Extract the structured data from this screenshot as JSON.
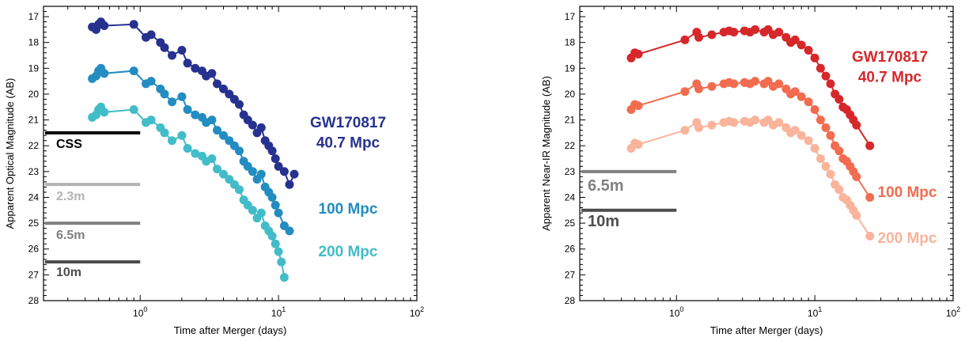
{
  "chart_data": [
    {
      "type": "line",
      "xlabel": "Time after Merger (days)",
      "ylabel": "Apparent Optical Magnitude (AB)",
      "xscale": "log",
      "xlim": [
        0.2,
        100
      ],
      "ylim": [
        28,
        16.6
      ],
      "y_inverted": true,
      "x_tick_labels": [
        {
          "base": "10",
          "exp": "0",
          "value": 1
        },
        {
          "base": "10",
          "exp": "1",
          "value": 10
        },
        {
          "base": "10",
          "exp": "2",
          "value": 100
        }
      ],
      "y_ticks": [
        17,
        18,
        19,
        20,
        21,
        22,
        23,
        24,
        25,
        26,
        27,
        28
      ],
      "y_tick_labels": [
        "17",
        "18",
        "19",
        "20",
        "21",
        "22",
        "23",
        "24",
        "25",
        "26",
        "27",
        "28"
      ],
      "series": [
        {
          "name": "GW170817 40.7 Mpc",
          "color": "#27318f",
          "x": [
            0.45,
            0.48,
            0.5,
            0.52,
            0.55,
            0.9,
            1.1,
            1.2,
            1.4,
            1.5,
            1.7,
            2.0,
            2.2,
            2.5,
            2.8,
            3.0,
            3.3,
            3.6,
            4.0,
            4.4,
            4.8,
            5.2,
            5.6,
            6.0,
            6.5,
            7.0,
            7.5,
            8.0,
            8.5,
            9.0,
            9.5,
            10.0,
            11.0,
            12.0,
            13.0
          ],
          "y": [
            17.4,
            17.5,
            17.3,
            17.2,
            17.35,
            17.3,
            17.8,
            17.7,
            18.0,
            18.2,
            18.5,
            18.3,
            18.8,
            19.0,
            19.1,
            19.3,
            19.2,
            19.6,
            19.8,
            20.0,
            20.2,
            20.4,
            20.8,
            21.0,
            21.2,
            21.5,
            21.3,
            21.8,
            22.0,
            22.2,
            22.5,
            22.8,
            23.0,
            23.5,
            23.1
          ]
        },
        {
          "name": "100 Mpc",
          "color": "#238cc0",
          "x": [
            0.45,
            0.48,
            0.5,
            0.52,
            0.55,
            0.9,
            1.1,
            1.2,
            1.4,
            1.5,
            1.7,
            2.0,
            2.2,
            2.5,
            2.8,
            3.0,
            3.3,
            3.6,
            4.0,
            4.4,
            4.8,
            5.2,
            5.6,
            6.0,
            6.5,
            7.0,
            7.5,
            8.0,
            8.5,
            9.0,
            9.5,
            10.0,
            11.0,
            12.0
          ],
          "y": [
            19.4,
            19.3,
            19.1,
            19.0,
            19.2,
            19.1,
            19.6,
            19.5,
            19.8,
            20.0,
            20.3,
            20.1,
            20.6,
            20.8,
            20.9,
            21.1,
            21.0,
            21.4,
            21.6,
            21.8,
            22.0,
            22.2,
            22.6,
            22.8,
            23.0,
            23.3,
            23.1,
            23.6,
            23.8,
            24.0,
            24.3,
            24.6,
            25.1,
            25.3
          ]
        },
        {
          "name": "200 Mpc",
          "color": "#42bcc8",
          "x": [
            0.45,
            0.48,
            0.5,
            0.52,
            0.55,
            0.9,
            1.1,
            1.2,
            1.4,
            1.5,
            1.7,
            2.0,
            2.2,
            2.5,
            2.8,
            3.0,
            3.3,
            3.6,
            4.0,
            4.4,
            4.8,
            5.2,
            5.6,
            6.0,
            6.5,
            7.0,
            7.5,
            8.0,
            8.5,
            9.0,
            9.5,
            10.0,
            10.5,
            11.0
          ],
          "y": [
            20.9,
            20.8,
            20.6,
            20.5,
            20.7,
            20.6,
            21.1,
            21.0,
            21.3,
            21.5,
            21.8,
            21.6,
            22.1,
            22.3,
            22.4,
            22.6,
            22.5,
            22.9,
            23.1,
            23.3,
            23.5,
            23.7,
            24.1,
            24.3,
            24.5,
            24.8,
            24.6,
            25.1,
            25.3,
            25.5,
            25.8,
            26.1,
            26.5,
            27.1
          ]
        }
      ],
      "thresholds": [
        {
          "label": "CSS",
          "value": 21.5,
          "color": "#000000"
        },
        {
          "label": "2.3m",
          "value": 23.5,
          "color": "#b3b3b3"
        },
        {
          "label": "6.5m",
          "value": 25.0,
          "color": "#808080"
        },
        {
          "label": "10m",
          "value": 26.5,
          "color": "#4d4d4d"
        }
      ],
      "threshold_xmax": 1.0,
      "annotations": [
        {
          "lines": [
            "GW170817",
            "40.7 Mpc"
          ],
          "color": "#27318f"
        },
        {
          "lines": [
            "100 Mpc"
          ],
          "color": "#238cc0"
        },
        {
          "lines": [
            "200 Mpc"
          ],
          "color": "#42bcc8"
        }
      ]
    },
    {
      "type": "line",
      "xlabel": "Time after Merger (days)",
      "ylabel": "Apparent Near-IR Magnitude (AB)",
      "xscale": "log",
      "xlim": [
        0.2,
        100
      ],
      "ylim": [
        28,
        16.6
      ],
      "y_inverted": true,
      "x_tick_labels": [
        {
          "base": "10",
          "exp": "0",
          "value": 1
        },
        {
          "base": "10",
          "exp": "1",
          "value": 10
        },
        {
          "base": "10",
          "exp": "2",
          "value": 100
        }
      ],
      "y_ticks": [
        17,
        18,
        19,
        20,
        21,
        22,
        23,
        24,
        25,
        26,
        27,
        28
      ],
      "y_tick_labels": [
        "17",
        "18",
        "19",
        "20",
        "21",
        "22",
        "23",
        "24",
        "25",
        "26",
        "27",
        "28"
      ],
      "series": [
        {
          "name": "GW170817 40.7 Mpc",
          "color": "#d6272a",
          "x": [
            0.47,
            0.5,
            0.53,
            1.15,
            1.4,
            1.45,
            1.8,
            2.2,
            2.4,
            2.6,
            3.1,
            3.4,
            3.7,
            4.3,
            4.6,
            5.0,
            5.5,
            6.2,
            6.7,
            7.2,
            8.0,
            9.0,
            10.0,
            11.0,
            12.0,
            13.0,
            14.0,
            15.0,
            16.0,
            17.0,
            18.0,
            19.0,
            20.0,
            25.0
          ],
          "y": [
            18.6,
            18.4,
            18.45,
            17.9,
            17.6,
            17.8,
            17.7,
            17.6,
            17.55,
            17.6,
            17.55,
            17.6,
            17.5,
            17.6,
            17.5,
            17.7,
            17.6,
            17.8,
            18.0,
            17.9,
            18.1,
            18.3,
            18.6,
            19.0,
            19.3,
            19.6,
            20.0,
            20.2,
            20.5,
            20.6,
            20.8,
            21.0,
            21.2,
            22.0
          ]
        },
        {
          "name": "100 Mpc",
          "color": "#f26c4f",
          "x": [
            0.47,
            0.5,
            0.53,
            1.15,
            1.4,
            1.45,
            1.8,
            2.2,
            2.4,
            2.6,
            3.1,
            3.4,
            3.7,
            4.3,
            4.6,
            5.0,
            5.5,
            6.2,
            6.7,
            7.2,
            8.0,
            9.0,
            10.0,
            11.0,
            12.0,
            13.0,
            14.0,
            15.0,
            16.0,
            17.0,
            18.0,
            19.0,
            20.0,
            25.0
          ],
          "y": [
            20.6,
            20.4,
            20.45,
            19.9,
            19.6,
            19.8,
            19.7,
            19.6,
            19.55,
            19.6,
            19.55,
            19.6,
            19.5,
            19.6,
            19.5,
            19.7,
            19.6,
            19.8,
            20.0,
            19.9,
            20.1,
            20.3,
            20.6,
            21.0,
            21.3,
            21.6,
            22.0,
            22.2,
            22.5,
            22.6,
            22.8,
            23.0,
            23.2,
            24.0
          ]
        },
        {
          "name": "200 Mpc",
          "color": "#f9b49b",
          "x": [
            0.47,
            0.5,
            0.53,
            1.15,
            1.4,
            1.45,
            1.8,
            2.2,
            2.4,
            2.6,
            3.1,
            3.4,
            3.7,
            4.3,
            4.6,
            5.0,
            5.5,
            6.2,
            6.7,
            7.2,
            8.0,
            9.0,
            10.0,
            11.0,
            12.0,
            13.0,
            14.0,
            15.0,
            16.0,
            17.0,
            18.0,
            19.0,
            20.0,
            25.0
          ],
          "y": [
            22.1,
            21.9,
            21.95,
            21.4,
            21.1,
            21.3,
            21.2,
            21.1,
            21.05,
            21.1,
            21.05,
            21.1,
            21.0,
            21.1,
            21.0,
            21.2,
            21.1,
            21.3,
            21.5,
            21.4,
            21.6,
            21.8,
            22.1,
            22.5,
            22.8,
            23.1,
            23.5,
            23.7,
            24.0,
            24.1,
            24.3,
            24.5,
            24.7,
            25.5
          ]
        }
      ],
      "thresholds": [
        {
          "label": "6.5m",
          "value": 23.0,
          "color": "#808080"
        },
        {
          "label": "10m",
          "value": 24.5,
          "color": "#4d4d4d"
        }
      ],
      "threshold_xmax": 1.0,
      "annotations": [
        {
          "lines": [
            "GW170817",
            "40.7 Mpc"
          ],
          "color": "#d6272a"
        },
        {
          "lines": [
            "100 Mpc"
          ],
          "color": "#f26c4f"
        },
        {
          "lines": [
            "200 Mpc"
          ],
          "color": "#f9b49b"
        }
      ]
    }
  ]
}
